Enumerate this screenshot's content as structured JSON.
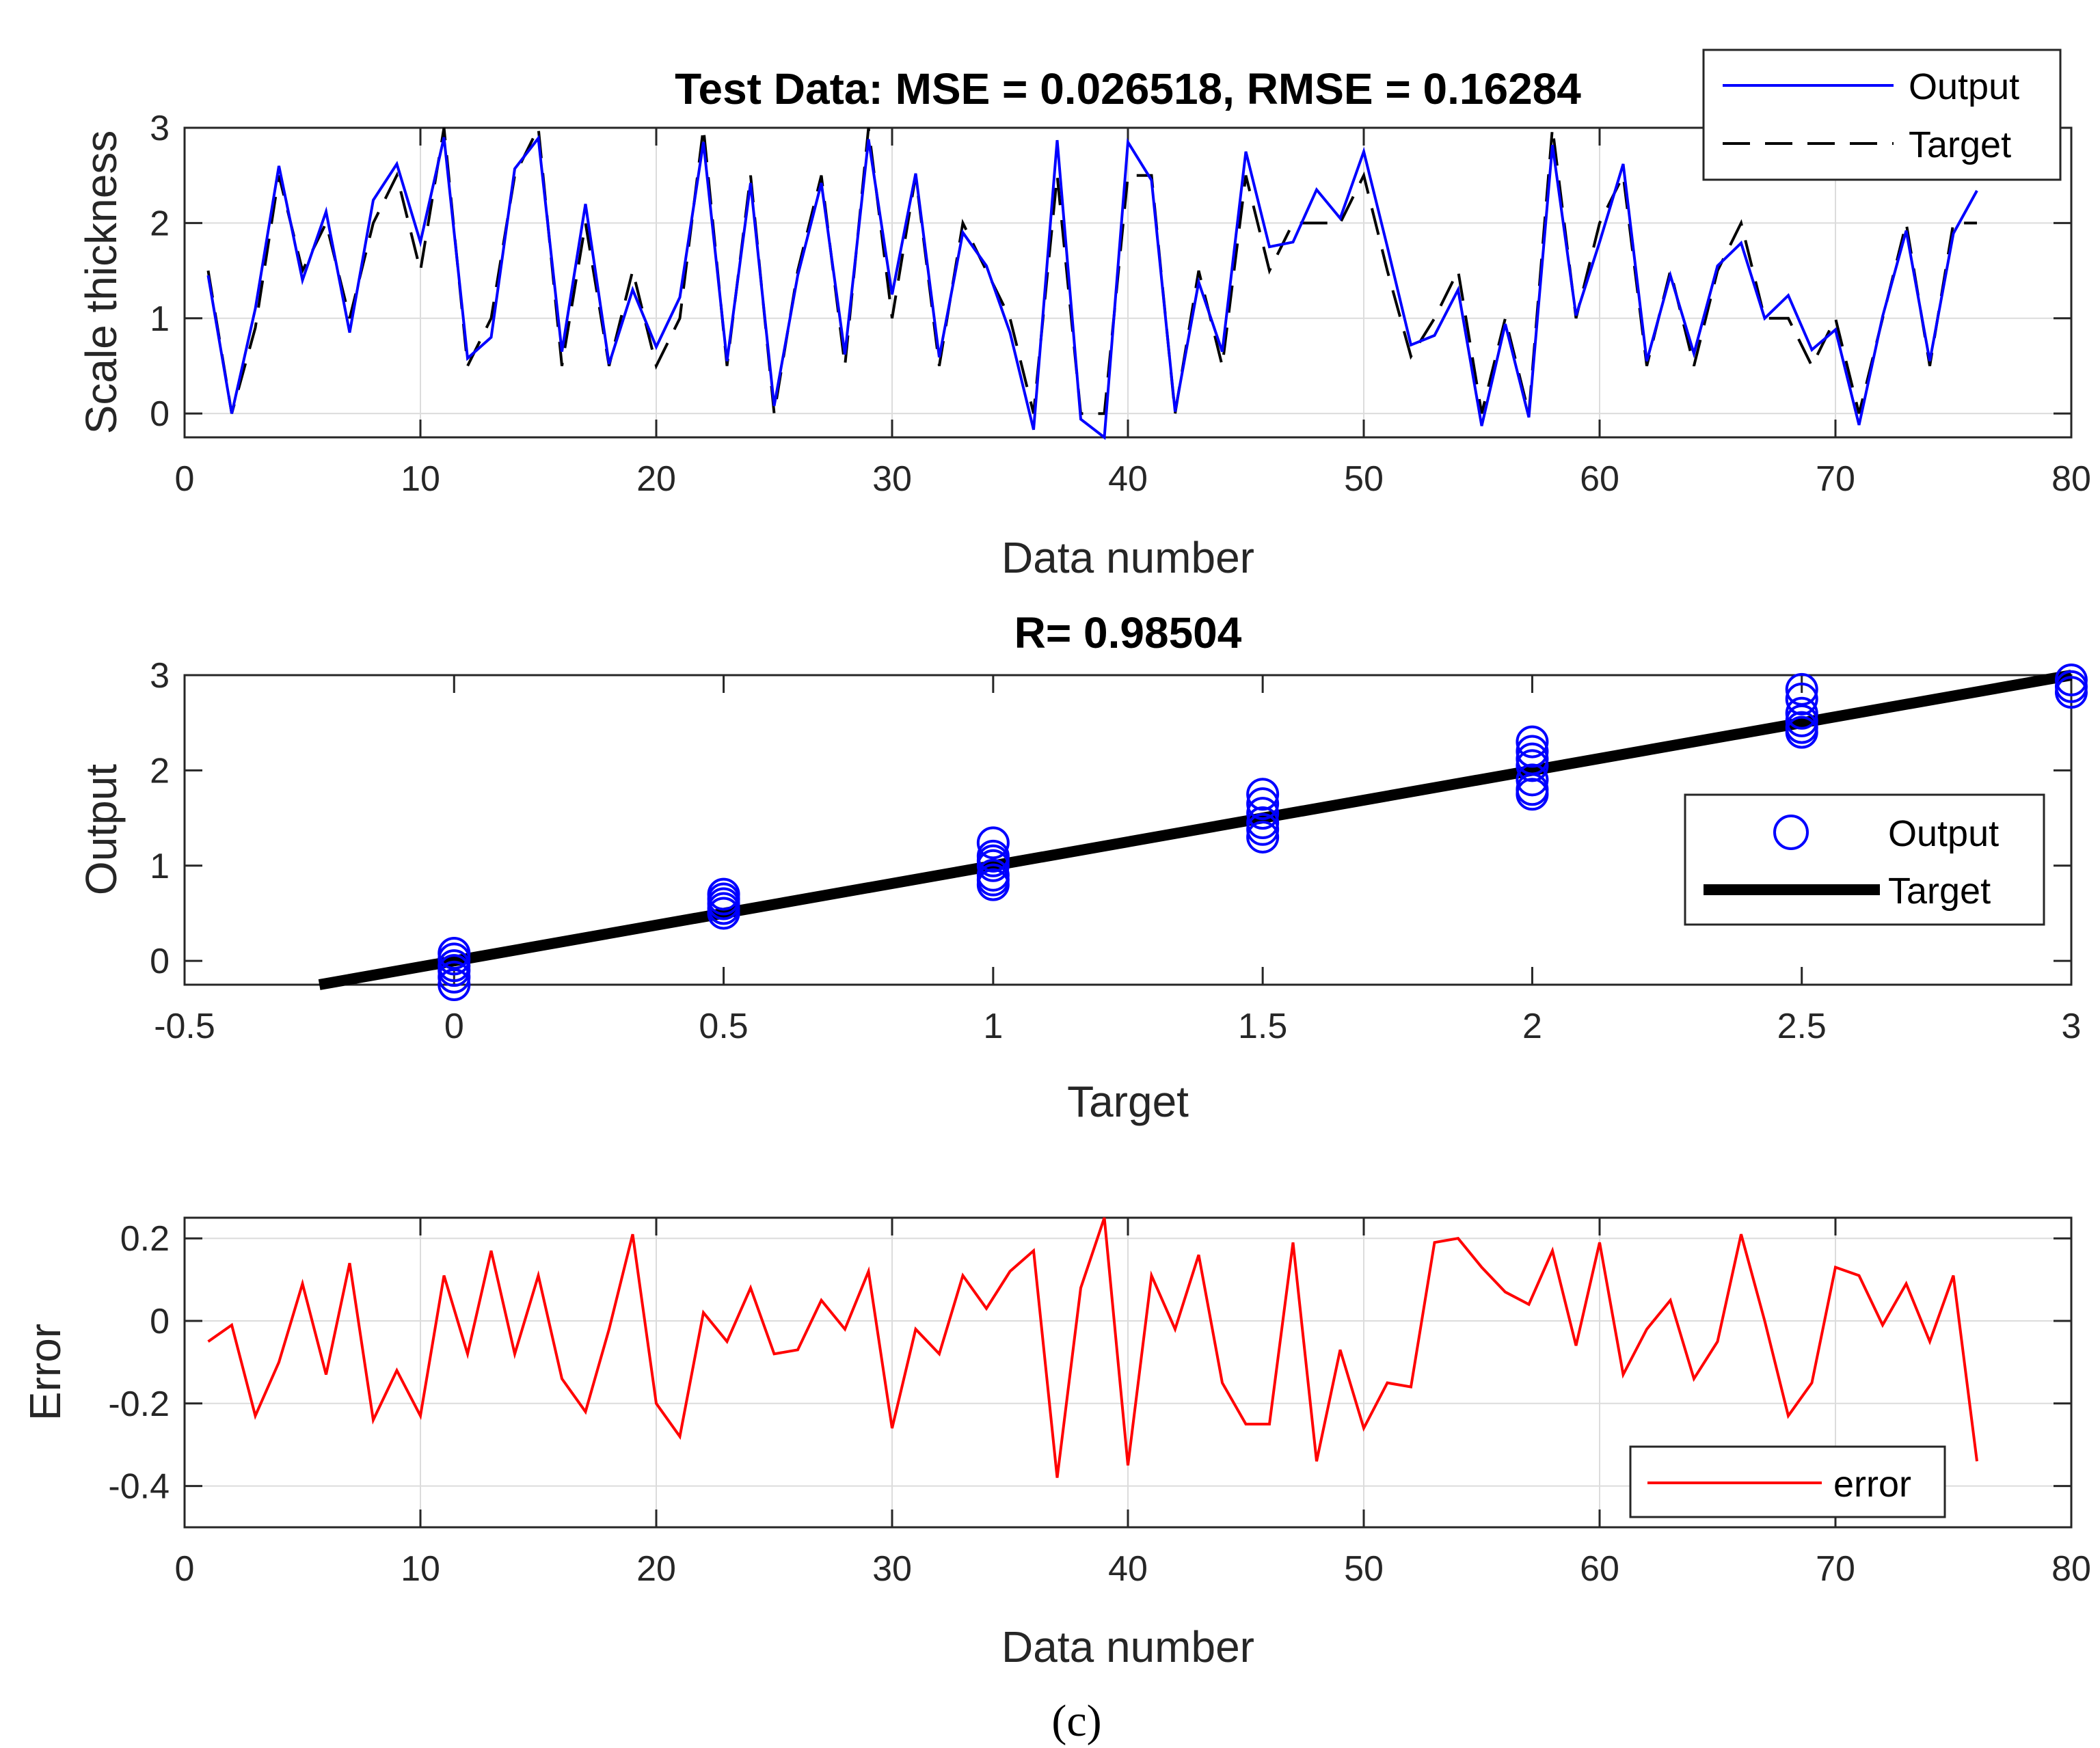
{
  "caption": "(c)",
  "colors": {
    "output": "#0000ff",
    "target": "#000000",
    "error": "#ff0000",
    "grid": "#dcdcdc",
    "axis": "#262626"
  },
  "chart_data": [
    {
      "type": "line",
      "title": "Test Data: MSE = 0.026518, RMSE = 0.16284",
      "xlabel": "Data number",
      "ylabel": "Scale thickness",
      "xlim": [
        0,
        80
      ],
      "ylim": [
        -0.25,
        3
      ],
      "xticks": [
        "0",
        "10",
        "20",
        "30",
        "40",
        "50",
        "60",
        "70",
        "80"
      ],
      "yticks": [
        "0",
        "1",
        "2",
        "3"
      ],
      "grid": true,
      "legend_position": "top-right",
      "x": [
        1,
        2,
        3,
        4,
        5,
        6,
        7,
        8,
        9,
        10,
        11,
        12,
        13,
        14,
        15,
        16,
        17,
        18,
        19,
        20,
        21,
        22,
        23,
        24,
        25,
        26,
        27,
        28,
        29,
        30,
        31,
        32,
        33,
        34,
        35,
        36,
        37,
        38,
        39,
        40,
        41,
        42,
        43,
        44,
        45,
        46,
        47,
        48,
        49,
        50,
        51,
        52,
        53,
        54,
        55,
        56,
        57,
        58,
        59,
        60,
        61,
        62,
        63,
        64,
        65,
        66,
        67,
        68,
        69,
        70,
        71,
        72,
        73,
        74,
        75,
        76
      ],
      "series": [
        {
          "name": "Output",
          "style": "solid",
          "values": [
            1.45,
            0.0,
            1.1,
            2.6,
            1.4,
            2.12,
            0.85,
            2.24,
            2.62,
            1.8,
            2.9,
            0.58,
            0.8,
            2.57,
            2.89,
            0.65,
            2.2,
            0.52,
            1.3,
            0.7,
            1.22,
            2.85,
            0.55,
            2.42,
            0.08,
            1.45,
            2.42,
            0.62,
            2.88,
            1.25,
            2.52,
            0.59,
            1.9,
            1.55,
            0.85,
            -0.17,
            2.87,
            -0.06,
            -0.25,
            2.85,
            2.45,
            0.02,
            1.38,
            0.65,
            2.75,
            1.75,
            1.8,
            2.35,
            2.05,
            2.75,
            1.75,
            0.72,
            0.82,
            1.3,
            -0.13,
            0.94,
            -0.04,
            2.82,
            1.03,
            1.8,
            2.62,
            0.55,
            1.45,
            0.63,
            1.55,
            1.79,
            1.0,
            1.24,
            0.67,
            0.88,
            -0.12,
            1.02,
            1.92,
            0.55,
            1.89,
            2.34
          ]
        },
        {
          "name": "Target",
          "style": "dashed",
          "values": [
            1.5,
            0.0,
            0.9,
            2.5,
            1.5,
            2.0,
            1.0,
            2.0,
            2.5,
            1.5,
            3.0,
            0.5,
            1.0,
            2.5,
            3.0,
            0.5,
            2.0,
            0.5,
            1.5,
            0.5,
            1.0,
            3.0,
            0.5,
            2.5,
            0.0,
            1.5,
            2.5,
            0.5,
            3.0,
            1.0,
            2.5,
            0.5,
            2.0,
            1.5,
            1.0,
            0.0,
            2.5,
            0.0,
            0.0,
            2.5,
            2.5,
            0.0,
            1.5,
            0.5,
            2.5,
            1.5,
            2.0,
            2.0,
            2.0,
            2.5,
            1.5,
            0.6,
            1.0,
            1.5,
            0.0,
            1.0,
            0.0,
            3.0,
            1.0,
            2.0,
            2.5,
            0.5,
            1.5,
            0.5,
            1.5,
            2.0,
            1.0,
            1.0,
            0.5,
            1.0,
            0.0,
            1.0,
            2.0,
            0.5,
            2.0,
            2.0
          ]
        }
      ]
    },
    {
      "type": "scatter",
      "title": "R= 0.98504",
      "xlabel": "Target",
      "ylabel": "Output",
      "xlim": [
        -0.5,
        3
      ],
      "ylim": [
        -0.25,
        3
      ],
      "xticks": [
        "-0.5",
        "0",
        "0.5",
        "1",
        "1.5",
        "2",
        "2.5",
        "3"
      ],
      "yticks": [
        "0",
        "1",
        "2",
        "3"
      ],
      "grid": false,
      "legend_position": "right",
      "series": [
        {
          "name": "Output",
          "style": "circle-marker",
          "points": [
            [
              0,
              0.08
            ],
            [
              0,
              0.02
            ],
            [
              0,
              -0.05
            ],
            [
              0,
              -0.1
            ],
            [
              0,
              -0.17
            ],
            [
              0,
              -0.25
            ],
            [
              0.5,
              0.5
            ],
            [
              0.5,
              0.55
            ],
            [
              0.5,
              0.6
            ],
            [
              0.5,
              0.65
            ],
            [
              0.5,
              0.7
            ],
            [
              1,
              0.8
            ],
            [
              1,
              0.85
            ],
            [
              1,
              0.9
            ],
            [
              1,
              1.0
            ],
            [
              1,
              1.05
            ],
            [
              1,
              1.1
            ],
            [
              1,
              1.24
            ],
            [
              1.5,
              1.3
            ],
            [
              1.5,
              1.38
            ],
            [
              1.5,
              1.45
            ],
            [
              1.5,
              1.55
            ],
            [
              1.5,
              1.65
            ],
            [
              1.5,
              1.75
            ],
            [
              2,
              1.75
            ],
            [
              2,
              1.8
            ],
            [
              2,
              1.9
            ],
            [
              2,
              2.05
            ],
            [
              2,
              2.12
            ],
            [
              2,
              2.2
            ],
            [
              2,
              2.3
            ],
            [
              2.5,
              2.4
            ],
            [
              2.5,
              2.45
            ],
            [
              2.5,
              2.52
            ],
            [
              2.5,
              2.6
            ],
            [
              2.5,
              2.75
            ],
            [
              2.5,
              2.85
            ],
            [
              3,
              2.82
            ],
            [
              3,
              2.88
            ],
            [
              3,
              2.95
            ]
          ]
        },
        {
          "name": "Target",
          "style": "thick-line",
          "points": [
            [
              -0.25,
              -0.25
            ],
            [
              3,
              3
            ]
          ]
        }
      ]
    },
    {
      "type": "line",
      "title": "",
      "xlabel": "Data number",
      "ylabel": "Error",
      "xlim": [
        0,
        80
      ],
      "ylim": [
        -0.5,
        0.25
      ],
      "xticks": [
        "0",
        "10",
        "20",
        "30",
        "40",
        "50",
        "60",
        "70",
        "80"
      ],
      "yticks": [
        "-0.4",
        "-0.2",
        "0",
        "0.2"
      ],
      "grid": true,
      "legend_position": "bottom-right",
      "x": [
        1,
        2,
        3,
        4,
        5,
        6,
        7,
        8,
        9,
        10,
        11,
        12,
        13,
        14,
        15,
        16,
        17,
        18,
        19,
        20,
        21,
        22,
        23,
        24,
        25,
        26,
        27,
        28,
        29,
        30,
        31,
        32,
        33,
        34,
        35,
        36,
        37,
        38,
        39,
        40,
        41,
        42,
        43,
        44,
        45,
        46,
        47,
        48,
        49,
        50,
        51,
        52,
        53,
        54,
        55,
        56,
        57,
        58,
        59,
        60,
        61,
        62,
        63,
        64,
        65,
        66,
        67,
        68,
        69,
        70,
        71,
        72,
        73,
        74,
        75,
        76
      ],
      "series": [
        {
          "name": "error",
          "style": "solid",
          "values": [
            -0.05,
            -0.01,
            -0.23,
            -0.1,
            0.09,
            -0.13,
            0.14,
            -0.24,
            -0.12,
            -0.23,
            0.11,
            -0.08,
            0.17,
            -0.08,
            0.11,
            -0.14,
            -0.22,
            -0.02,
            0.21,
            -0.2,
            -0.28,
            0.02,
            -0.05,
            0.08,
            -0.08,
            -0.07,
            0.05,
            -0.02,
            0.12,
            -0.26,
            -0.02,
            -0.08,
            0.11,
            0.03,
            0.12,
            0.17,
            -0.38,
            0.08,
            0.25,
            -0.35,
            0.11,
            -0.02,
            0.16,
            -0.15,
            -0.25,
            -0.25,
            0.19,
            -0.34,
            -0.07,
            -0.26,
            -0.15,
            -0.16,
            0.19,
            0.2,
            0.13,
            0.07,
            0.04,
            0.17,
            -0.06,
            0.19,
            -0.13,
            -0.02,
            0.05,
            -0.14,
            -0.05,
            0.21,
            0.0,
            -0.23,
            -0.15,
            0.13,
            0.11,
            -0.01,
            0.09,
            -0.05,
            0.11,
            -0.34
          ]
        }
      ]
    }
  ]
}
